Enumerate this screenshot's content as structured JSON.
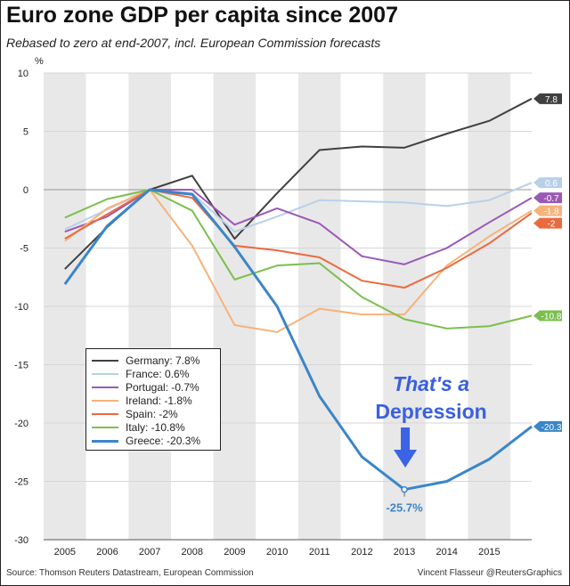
{
  "title": "Euro zone GDP per capita since 2007",
  "subtitle": "Rebased to zero at end-2007, incl. European Commission forecasts",
  "footer": {
    "source": "Source: Thomson Reuters Datastream, European Commission",
    "credit": "Vincent Flasseur @ReutersGraphics"
  },
  "chart_data": {
    "type": "line",
    "title": "Euro zone GDP per capita since 2007",
    "subtitle": "Rebased to zero at end-2007, incl. European Commission forecasts",
    "ylabel": "%",
    "xlabel": "",
    "categories": [
      "2005",
      "2006",
      "2007",
      "2008",
      "2009",
      "2010",
      "2011",
      "2012",
      "2013",
      "2014",
      "2015"
    ],
    "x": [
      2005,
      2006,
      2007,
      2008,
      2009,
      2010,
      2011,
      2012,
      2013,
      2014,
      2015,
      2016
    ],
    "ylim": [
      -30,
      10
    ],
    "yticks": [
      10,
      5,
      0,
      -5,
      -10,
      -15,
      -20,
      -25,
      -30
    ],
    "grid": "alternating vertical bands",
    "legend_position": "bottom-left",
    "series": [
      {
        "name": "Germany",
        "legend": "Germany: 7.8%",
        "color": "#404040",
        "end_label": "7.8",
        "values": [
          -6.8,
          -3.2,
          0.0,
          1.2,
          -4.2,
          -0.3,
          3.4,
          3.7,
          3.6,
          4.8,
          5.9,
          7.8
        ]
      },
      {
        "name": "France",
        "legend": "France: 0.6%",
        "color": "#b9d0ea",
        "end_label": "0.6",
        "values": [
          -3.4,
          -1.7,
          0.0,
          -0.3,
          -3.6,
          -2.3,
          -0.9,
          -1.0,
          -1.1,
          -1.4,
          -0.9,
          0.6
        ]
      },
      {
        "name": "Portugal",
        "legend": "Portugal: -0.7%",
        "color": "#9b59b6",
        "end_label": "-0.7",
        "values": [
          -3.6,
          -2.3,
          0.0,
          0.0,
          -3.0,
          -1.6,
          -2.9,
          -5.7,
          -6.4,
          -5.0,
          -2.8,
          -0.7
        ]
      },
      {
        "name": "Ireland",
        "legend": "Ireland: -1.8%",
        "color": "#f7b27a",
        "end_label": "-1.8",
        "values": [
          -4.4,
          -1.6,
          0.0,
          -4.8,
          -11.6,
          -12.2,
          -10.2,
          -10.7,
          -10.7,
          -6.5,
          -4.0,
          -1.8
        ]
      },
      {
        "name": "Spain",
        "legend": "Spain: -2%",
        "color": "#ea6a3f",
        "end_label": "-2",
        "values": [
          -4.2,
          -2.1,
          0.0,
          -0.7,
          -4.8,
          -5.2,
          -5.8,
          -7.8,
          -8.4,
          -6.7,
          -4.6,
          -2.0
        ]
      },
      {
        "name": "Italy",
        "legend": "Italy: -10.8%",
        "color": "#7cbf4d",
        "end_label": "-10.8",
        "values": [
          -2.4,
          -0.8,
          0.0,
          -1.8,
          -7.7,
          -6.5,
          -6.3,
          -9.2,
          -11.1,
          -11.9,
          -11.7,
          -10.8
        ]
      },
      {
        "name": "Greece",
        "legend": "Greece: -20.3%",
        "color": "#3a86c8",
        "end_label": "-20.3",
        "values": [
          -8.1,
          -3.1,
          0.0,
          -0.4,
          -4.9,
          -10.0,
          -17.7,
          -22.9,
          -25.7,
          -25.0,
          -23.1,
          -20.3
        ]
      }
    ],
    "annotations": {
      "callout_line1": "That's a",
      "callout_line2": "Depression",
      "trough_label": "-25.7%",
      "trough_series": "Greece",
      "trough_x": 2013,
      "trough_y": -25.7
    }
  }
}
